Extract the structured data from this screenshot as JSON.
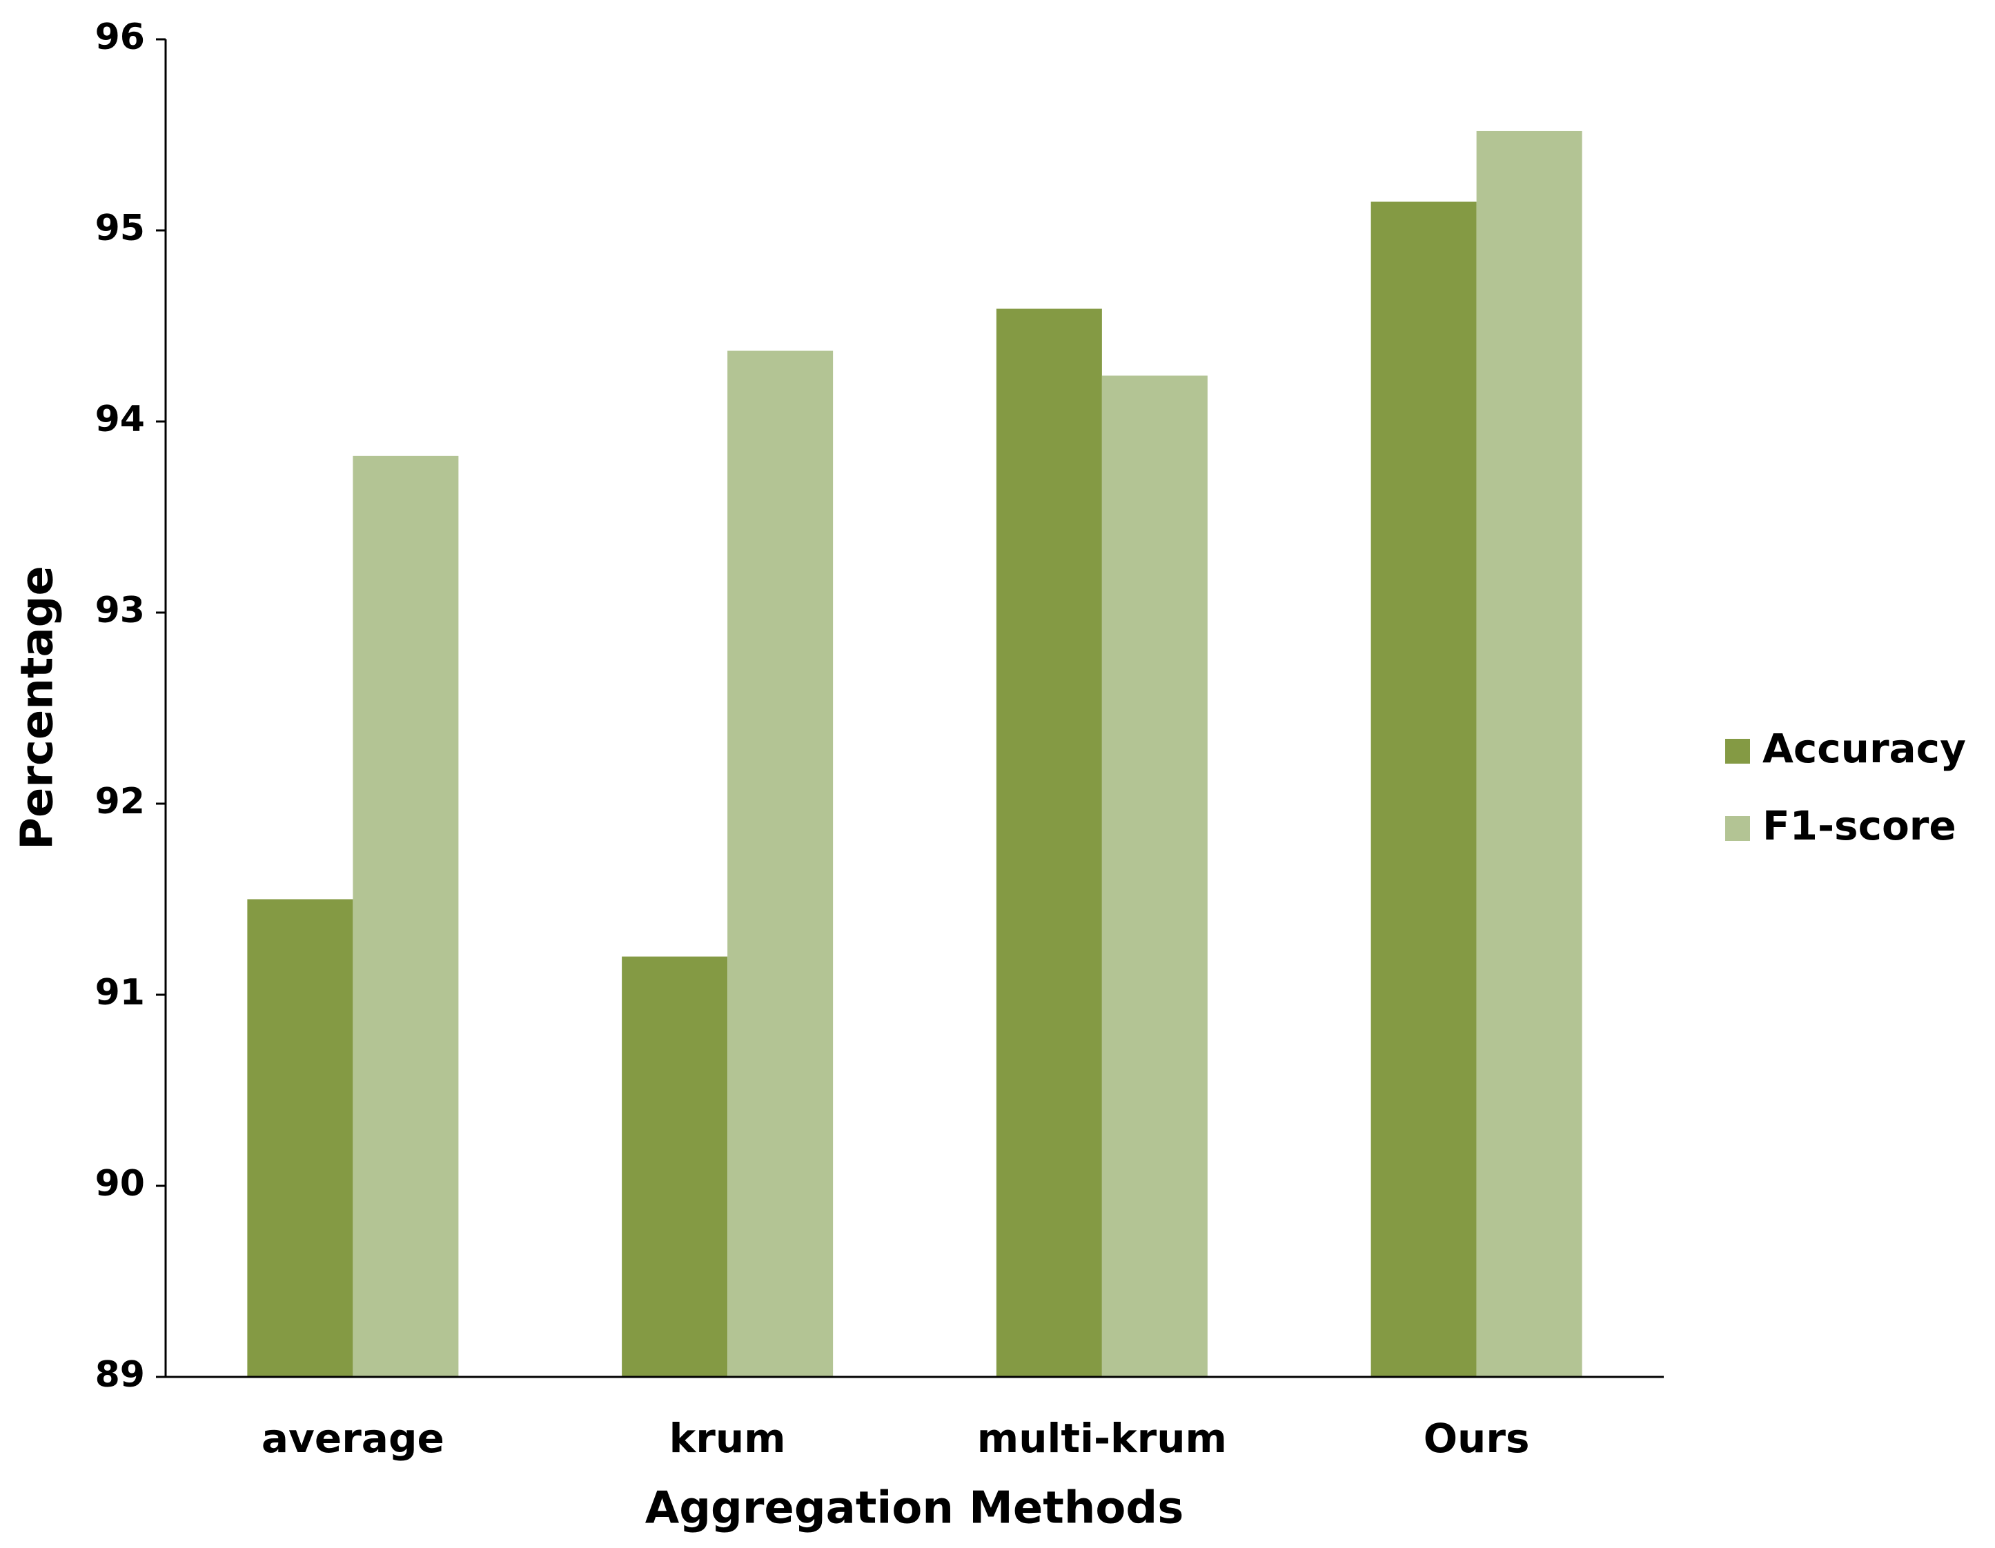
{
  "chart_data": {
    "type": "bar",
    "x_label": "Aggregation Methods",
    "y_label": "Percentage",
    "categories": [
      "average",
      "krum",
      "multi-krum",
      "Ours"
    ],
    "series": [
      {
        "name": "Accuracy",
        "color": "#849a44",
        "values": [
          91.5,
          91.2,
          94.59,
          95.15
        ]
      },
      {
        "name": "F1-score",
        "color": "#b3c494",
        "values": [
          93.82,
          94.37,
          94.24,
          95.52
        ]
      }
    ],
    "ylim": [
      89,
      96
    ],
    "yticks": [
      89,
      90,
      91,
      92,
      93,
      94,
      95,
      96
    ],
    "grid": false,
    "legend": "right"
  }
}
